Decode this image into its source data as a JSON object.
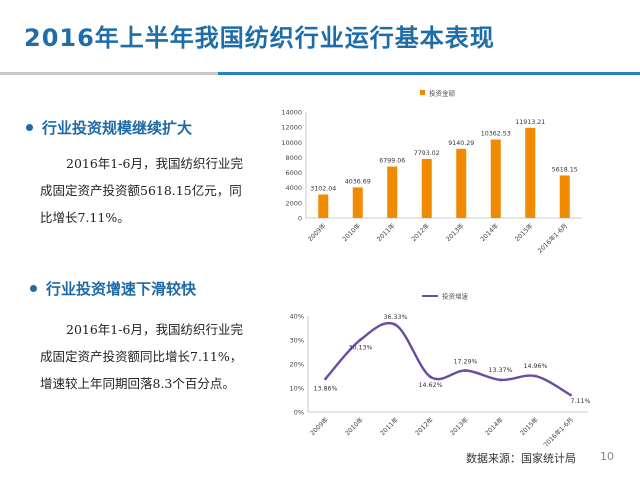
{
  "slide": {
    "title": "2016年上半年我国纺织行业运行基本表现",
    "source": "数据来源：国家统计局",
    "page_number": "10",
    "accent": "#1d6aa7",
    "rule_color": "#2a7fc0"
  },
  "section1": {
    "heading": "行业投资规模继续扩大",
    "paragraph_lines": [
      "2016年1-6月，我国纺织行业完",
      "成固定资产投资额5618.15亿元，同",
      "比增长7.11%。"
    ]
  },
  "section2": {
    "heading": "行业投资增速下滑较快",
    "paragraph_lines": [
      "2016年1-6月，我国纺织行业完",
      "成固定资产投资额同比增长7.11%，",
      "增速较上年同期回落8.3个百分点。"
    ]
  },
  "chart_data": [
    {
      "type": "bar",
      "categories": [
        "2009年",
        "2010年",
        "2011年",
        "2012年",
        "2013年",
        "2014年",
        "2015年",
        "2016年1-6月"
      ],
      "series": [
        {
          "name": "投资金额",
          "values": [
            3102.04,
            4036.69,
            6799.06,
            7793.02,
            9140.29,
            10362.53,
            11913.21,
            5618.15
          ]
        }
      ],
      "value_labels": [
        "3102.04",
        "4036.69",
        "6799.06",
        "7793.02",
        "9140.29",
        "10362.53",
        "11913.21",
        "5618.15"
      ],
      "yticks": [
        "0",
        "2000",
        "4000",
        "6000",
        "8000",
        "10000",
        "12000",
        "14000"
      ],
      "ylim": [
        0,
        14000
      ],
      "legend": "top-center",
      "grid": false,
      "color": "#f08a00"
    },
    {
      "type": "line",
      "categories": [
        "2009年",
        "2010年",
        "2011年",
        "2012年",
        "2013年",
        "2014年",
        "2015年",
        "2016年1-6月"
      ],
      "series": [
        {
          "name": "投资增速",
          "values": [
            13.86,
            30.13,
            36.33,
            14.62,
            17.29,
            13.37,
            14.96,
            7.11
          ]
        }
      ],
      "value_labels": [
        "13.86%",
        "30.13%",
        "36.33%",
        "14.62%",
        "17.29%",
        "13.37%",
        "14.96%",
        "7.11%"
      ],
      "yticks": [
        "0%",
        "10%",
        "20%",
        "30%",
        "40%"
      ],
      "ylim": [
        0,
        40
      ],
      "legend": "top-left",
      "grid": false,
      "color": "#6a4ca0"
    }
  ]
}
